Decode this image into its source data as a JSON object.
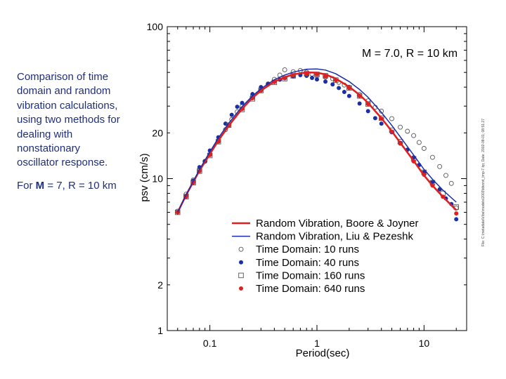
{
  "caption": {
    "text": "Comparison of time domain and random vibration calculations, using two methods for dealing with nonstationary oscillator response.",
    "prefix": "For ",
    "m_symbol": "M",
    "suffix": " = 7, R = 10 km"
  },
  "chart_data": {
    "type": "scatter",
    "annotation": "M = 7.0, R = 10 km",
    "xlabel": "Period(sec)",
    "ylabel": "psv (cm/s)",
    "xscale": "log",
    "yscale": "log",
    "xlim": [
      0.04,
      25
    ],
    "ylim": [
      1,
      100
    ],
    "x_tick_labels": [
      {
        "value": 0.1,
        "label": "0.1"
      },
      {
        "value": 1,
        "label": "1"
      },
      {
        "value": 10,
        "label": "10"
      }
    ],
    "y_tick_labels": [
      {
        "value": 1,
        "label": "1"
      },
      {
        "value": 2,
        "label": "2"
      },
      {
        "value": 10,
        "label": "10"
      },
      {
        "value": 20,
        "label": "20"
      },
      {
        "value": 100,
        "label": "100"
      }
    ],
    "side_note": "File: C:\\metadata\\Vibe\\models\\2003\\tdvsrvt_tmp-7.bp; Date: 2002-08-01; 08:51:27",
    "series": [
      {
        "name": "Random Vibration, Boore & Joyner",
        "kind": "line",
        "color": "#e02020",
        "x": [
          0.05,
          0.06,
          0.07,
          0.08,
          0.1,
          0.12,
          0.15,
          0.2,
          0.25,
          0.3,
          0.4,
          0.5,
          0.6,
          0.8,
          1.0,
          1.2,
          1.5,
          2.0,
          2.5,
          3.0,
          4.0,
          5.0,
          6.0,
          8.0,
          10.0,
          12.0,
          15.0,
          20.0
        ],
        "y": [
          6.0,
          7.8,
          9.5,
          11.3,
          14.5,
          17.8,
          22.3,
          28.8,
          34.0,
          38.0,
          43.5,
          46.5,
          48.5,
          50.0,
          49.8,
          48.5,
          45.5,
          40.2,
          35.6,
          31.5,
          25.0,
          20.5,
          17.2,
          13.1,
          10.5,
          9.0,
          7.6,
          6.2
        ]
      },
      {
        "name": "Random Vibration, Liu & Pezeshk",
        "kind": "line",
        "color": "#1a2ea8",
        "x": [
          0.05,
          0.06,
          0.07,
          0.08,
          0.1,
          0.12,
          0.15,
          0.2,
          0.25,
          0.3,
          0.4,
          0.5,
          0.6,
          0.8,
          1.0,
          1.2,
          1.5,
          2.0,
          2.5,
          3.0,
          4.0,
          5.0,
          6.0,
          8.0,
          10.0,
          12.0,
          15.0,
          20.0
        ],
        "y": [
          6.0,
          7.8,
          9.6,
          11.5,
          15.0,
          18.5,
          23.2,
          29.8,
          35.0,
          39.0,
          44.8,
          48.0,
          50.2,
          52.5,
          52.7,
          51.8,
          49.0,
          43.5,
          38.6,
          34.3,
          27.3,
          22.4,
          18.8,
          14.3,
          11.5,
          9.9,
          8.4,
          7.0
        ]
      },
      {
        "name": "Time Domain: 10 runs",
        "kind": "markers",
        "marker": "open-circle",
        "color": "#555555",
        "x": [
          0.05,
          0.06,
          0.07,
          0.08,
          0.09,
          0.1,
          0.12,
          0.14,
          0.16,
          0.18,
          0.2,
          0.25,
          0.3,
          0.35,
          0.4,
          0.45,
          0.5,
          0.6,
          0.7,
          0.8,
          0.9,
          1.0,
          1.2,
          1.4,
          1.6,
          1.8,
          2.0,
          2.5,
          3.0,
          3.5,
          4.0,
          5.0,
          6.0,
          7.0,
          8.0,
          9.0,
          10.0,
          12.0,
          14.0,
          16.0,
          18.0,
          20.0
        ],
        "y": [
          6.1,
          7.9,
          9.8,
          11.4,
          13.0,
          14.4,
          17.6,
          21.0,
          24.5,
          27.5,
          30.0,
          34.8,
          38.5,
          42.0,
          45.0,
          48.0,
          52.0,
          50.5,
          51.5,
          50.2,
          48.8,
          47.5,
          46.5,
          45.5,
          43.0,
          41.3,
          40.0,
          35.8,
          32.5,
          29.5,
          27.8,
          24.8,
          21.8,
          20.5,
          19.2,
          17.3,
          15.8,
          13.8,
          12.0,
          10.5,
          9.3,
          6.4
        ]
      },
      {
        "name": "Time Domain: 40 runs",
        "kind": "markers",
        "marker": "filled-circle",
        "color": "#1a2ea8",
        "x": [
          0.05,
          0.06,
          0.07,
          0.08,
          0.09,
          0.1,
          0.12,
          0.14,
          0.16,
          0.18,
          0.2,
          0.25,
          0.3,
          0.35,
          0.4,
          0.45,
          0.5,
          0.6,
          0.7,
          0.8,
          0.9,
          1.0,
          1.2,
          1.4,
          1.6,
          1.8,
          2.0,
          2.5,
          3.0,
          3.5,
          4.0,
          5.0,
          6.0,
          7.0,
          8.0,
          9.0,
          10.0,
          12.0,
          14.0,
          16.0,
          18.0,
          20.0
        ],
        "y": [
          6.0,
          7.7,
          9.7,
          11.9,
          13.0,
          15.3,
          18.7,
          23.0,
          26.3,
          29.7,
          31.5,
          36.0,
          40.0,
          42.0,
          43.5,
          44.8,
          45.8,
          47.0,
          48.0,
          47.5,
          46.0,
          45.0,
          43.5,
          41.7,
          39.5,
          37.2,
          35.0,
          31.2,
          27.8,
          25.0,
          23.0,
          20.2,
          17.2,
          15.5,
          13.8,
          12.3,
          11.0,
          9.5,
          8.5,
          7.4,
          6.8,
          5.4
        ]
      },
      {
        "name": "Time Domain: 160 runs",
        "kind": "markers",
        "marker": "open-square",
        "color": "#555555",
        "x": [
          0.05,
          0.06,
          0.07,
          0.08,
          0.1,
          0.12,
          0.15,
          0.2,
          0.25,
          0.3,
          0.4,
          0.5,
          0.6,
          0.8,
          1.0,
          1.2,
          1.5,
          2.0,
          2.5,
          3.0,
          4.0,
          5.0,
          6.0,
          8.0,
          10.0,
          12.0,
          15.0,
          20.0
        ],
        "y": [
          6.0,
          7.6,
          9.4,
          11.2,
          14.2,
          17.5,
          22.5,
          28.5,
          33.5,
          38.0,
          43.0,
          45.5,
          47.5,
          49.0,
          48.5,
          47.5,
          44.5,
          39.5,
          35.0,
          31.0,
          25.0,
          20.8,
          17.5,
          13.5,
          11.0,
          9.4,
          8.0,
          6.5
        ]
      },
      {
        "name": "Time Domain: 640 runs",
        "kind": "markers",
        "marker": "filled-circle",
        "color": "#e02020",
        "x": [
          0.05,
          0.06,
          0.07,
          0.08,
          0.1,
          0.12,
          0.15,
          0.2,
          0.25,
          0.3,
          0.4,
          0.5,
          0.6,
          0.8,
          1.0,
          1.2,
          1.5,
          2.0,
          2.5,
          3.0,
          4.0,
          5.0,
          6.0,
          8.0,
          10.0,
          12.0,
          15.0,
          20.0
        ],
        "y": [
          6.0,
          7.6,
          9.4,
          11.2,
          14.3,
          17.6,
          22.3,
          28.7,
          33.8,
          38.0,
          43.2,
          45.8,
          47.8,
          49.0,
          48.6,
          47.2,
          44.5,
          39.5,
          35.0,
          31.0,
          24.8,
          20.4,
          17.0,
          13.0,
          10.6,
          9.0,
          7.6,
          5.9
        ]
      }
    ]
  }
}
